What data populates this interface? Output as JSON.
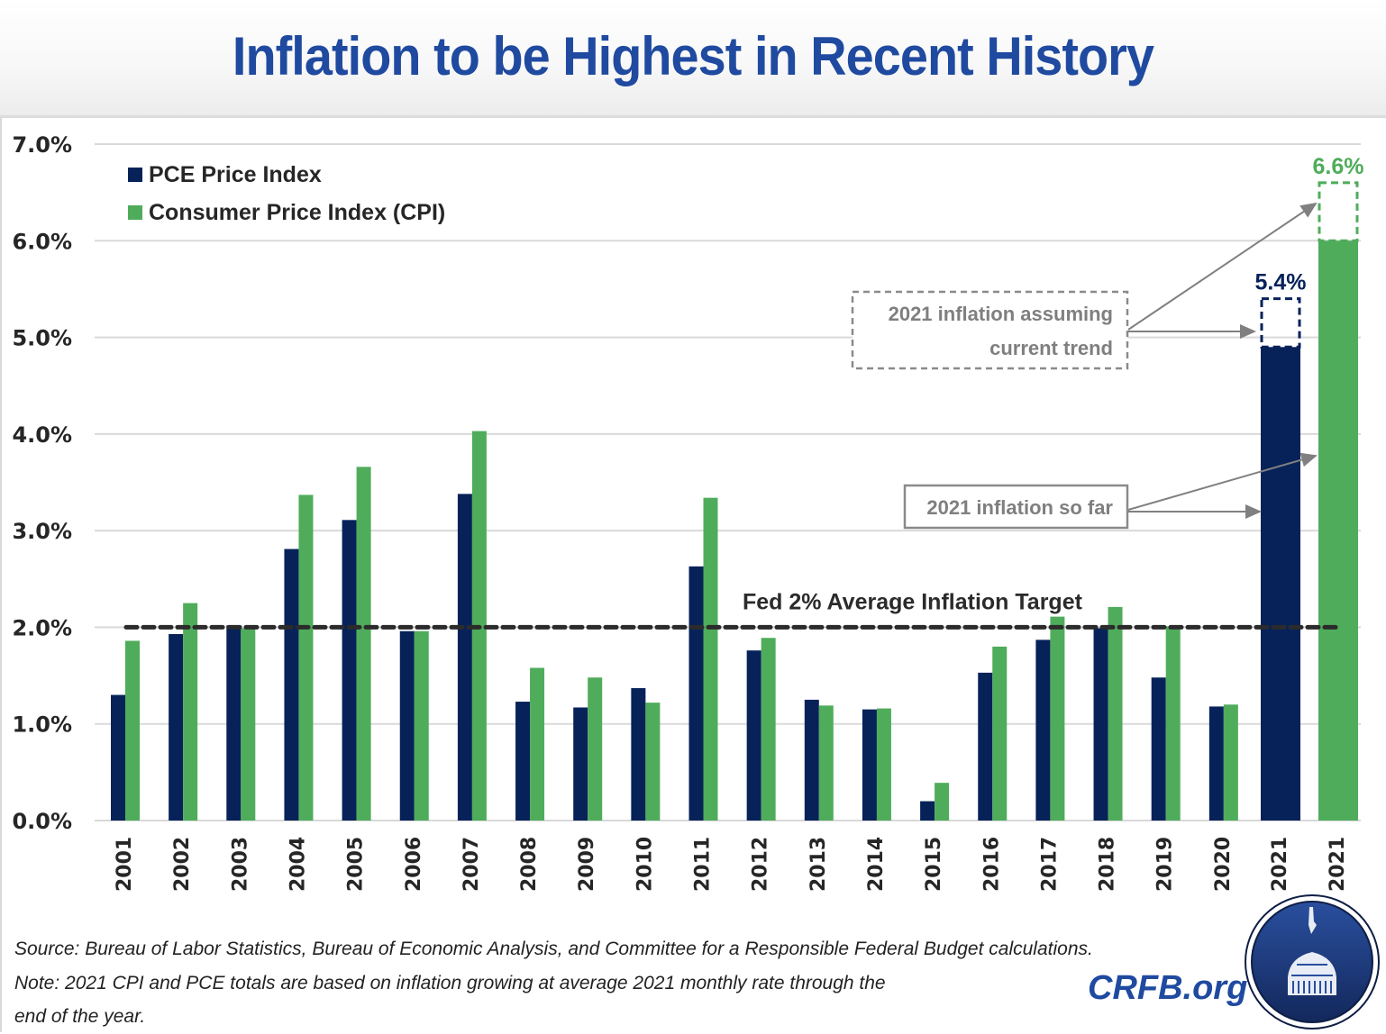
{
  "header": {
    "title": "Inflation to be Highest in Recent History"
  },
  "chart_data": {
    "type": "bar",
    "title": "Inflation to be Highest in Recent History",
    "xlabel": "",
    "ylabel": "",
    "ylim": [
      0,
      7
    ],
    "yticks": [
      "0.0%",
      "1.0%",
      "2.0%",
      "3.0%",
      "4.0%",
      "5.0%",
      "6.0%",
      "7.0%"
    ],
    "grid": true,
    "legend_position": "top-left",
    "categories": [
      "2001",
      "2002",
      "2003",
      "2004",
      "2005",
      "2006",
      "2007",
      "2008",
      "2009",
      "2010",
      "2011",
      "2012",
      "2013",
      "2014",
      "2015",
      "2016",
      "2017",
      "2018",
      "2019",
      "2020"
    ],
    "series": [
      {
        "name": "PCE Price Index",
        "color": "#062259",
        "values": [
          1.3,
          1.93,
          2.02,
          2.81,
          3.11,
          1.96,
          3.38,
          1.23,
          1.17,
          1.37,
          2.63,
          1.76,
          1.25,
          1.15,
          0.2,
          1.53,
          1.87,
          1.99,
          1.48,
          1.18
        ]
      },
      {
        "name": "Consumer Price Index (CPI)",
        "color": "#4fac5b",
        "values": [
          1.86,
          2.25,
          1.99,
          3.37,
          3.66,
          1.96,
          4.03,
          1.58,
          1.48,
          1.22,
          3.34,
          1.89,
          1.19,
          1.16,
          0.39,
          1.8,
          2.11,
          2.21,
          2.01,
          1.2
        ]
      }
    ],
    "projection_2021": [
      {
        "label": "2021",
        "series": "PCE Price Index",
        "so_far": 4.9,
        "projected": 5.4,
        "value_label": "5.4%",
        "color": "#062259"
      },
      {
        "label": "2021",
        "series": "Consumer Price Index (CPI)",
        "so_far": 6.0,
        "projected": 6.6,
        "value_label": "6.6%",
        "color": "#4fac5b"
      }
    ],
    "reference_line": {
      "value": 2.0,
      "label": "Fed 2% Average Inflation Target"
    },
    "annotations": [
      {
        "text_lines": [
          "2021 inflation assuming",
          "current trend"
        ],
        "style": "dashed-box"
      },
      {
        "text_lines": [
          "2021 inflation so far"
        ],
        "style": "solid-box"
      }
    ]
  },
  "footer": {
    "source": "Source: Bureau of Labor Statistics, Bureau of Economic Analysis, and Committee for a Responsible Federal Budget calculations.",
    "note_line1": "Note: 2021 CPI and PCE totals are based on inflation growing at average 2021 monthly rate through the",
    "note_line2": "end of the year.",
    "brand": "CRFB.org",
    "logo_icon": "capitol-dome-seal-icon"
  }
}
